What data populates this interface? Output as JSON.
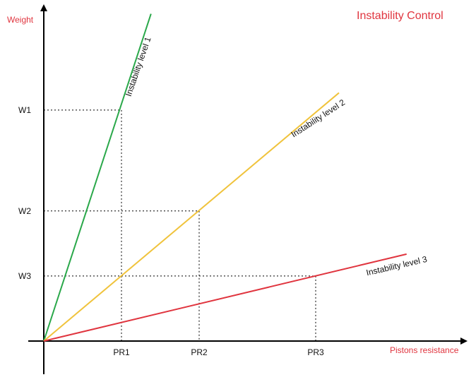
{
  "chart_data": {
    "type": "line",
    "title": "Instability Control",
    "xlabel": "Pistons resistance",
    "ylabel": "Weight",
    "x_ticks": [
      "PR1",
      "PR2",
      "PR3"
    ],
    "y_ticks": [
      "W1",
      "W2",
      "W3"
    ],
    "grid": false,
    "series": [
      {
        "name": "Instability level 1",
        "color": "#2aa84a",
        "values": [
          [
            0,
            0
          ],
          [
            1,
            3.48
          ]
        ]
      },
      {
        "name": "Instability level 2",
        "color": "#f0c33c",
        "values": [
          [
            0,
            0
          ],
          [
            2,
            1.96
          ]
        ]
      },
      {
        "name": "Instability level 3",
        "color": "#e0353f",
        "values": [
          [
            0,
            0
          ],
          [
            3.5,
            0.98
          ]
        ]
      }
    ]
  },
  "colors": {
    "axis": "#000000",
    "label_accent": "#e0353f",
    "guide": "#000000"
  }
}
